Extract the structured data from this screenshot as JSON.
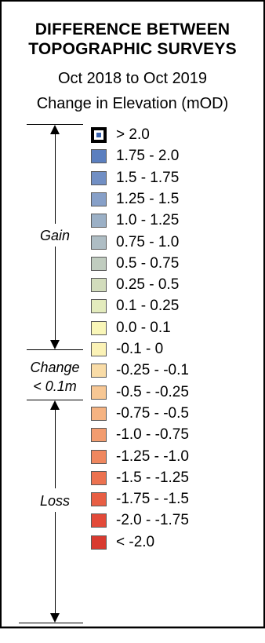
{
  "title_lines": [
    "DIFFERENCE BETWEEN",
    "TOPOGRAPHIC SURVEYS"
  ],
  "subtitle": "Oct 2018 to Oct 2019",
  "units_label": "Change in Elevation (mOD)",
  "side_labels": {
    "gain": "Gain",
    "change_line1": "Change",
    "change_line2": "< 0.1m",
    "loss": "Loss"
  },
  "legend_items": [
    {
      "label": "> 2.0",
      "color": "#3a63b0",
      "style": "outlined"
    },
    {
      "label": "1.75 - 2.0",
      "color": "#5b7fbf"
    },
    {
      "label": "1.5 - 1.75",
      "color": "#718fc4"
    },
    {
      "label": "1.25 - 1.5",
      "color": "#87a0c8"
    },
    {
      "label": "1.0 - 1.25",
      "color": "#9bb0c6"
    },
    {
      "label": "0.75 - 1.0",
      "color": "#aebdc4"
    },
    {
      "label": "0.5 - 0.75",
      "color": "#c0ccbf"
    },
    {
      "label": "0.25 - 0.5",
      "color": "#d2dcbc"
    },
    {
      "label": "0.1 - 0.25",
      "color": "#e3ebbd"
    },
    {
      "label": "0.0 - 0.1",
      "color": "#f9f6b8"
    },
    {
      "label": "-0.1 - 0",
      "color": "#fbf2b6"
    },
    {
      "label": "-0.25 - -0.1",
      "color": "#f9dca7"
    },
    {
      "label": "-0.5 - -0.25",
      "color": "#f7c794"
    },
    {
      "label": "-0.75 - -0.5",
      "color": "#f5b382"
    },
    {
      "label": "-1.0 - -0.75",
      "color": "#f29c6f"
    },
    {
      "label": "-1.25 - -1.0",
      "color": "#ef875f"
    },
    {
      "label": "-1.5 - -1.25",
      "color": "#ec7250"
    },
    {
      "label": "-1.75 - -1.5",
      "color": "#e85e44"
    },
    {
      "label": "-2.0 - -1.75",
      "color": "#e34a39"
    },
    {
      "label": "< -2.0",
      "color": "#d93a30"
    }
  ]
}
